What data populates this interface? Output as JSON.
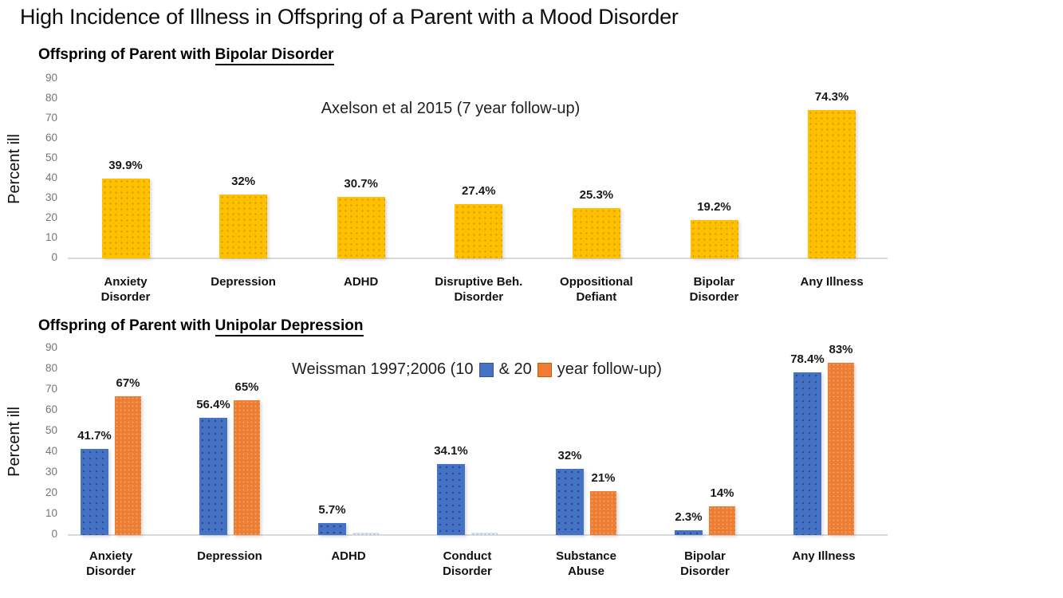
{
  "page": {
    "title": "High Incidence of Illness in Offspring of a Parent with a Mood Disorder"
  },
  "colors": {
    "gold": "#FFC000",
    "blue": "#4472C4",
    "orange": "#ED7D31",
    "sliver": "#DDE3EE",
    "axis_line": "#D9D9D9",
    "tick_text": "#757575"
  },
  "chart_data": [
    {
      "type": "bar",
      "title": "Offspring of Parent with Bipolar Disorder",
      "title_prefix": "Offspring of Parent with ",
      "title_underline": "Bipolar Disorder",
      "annotation": "Axelson et al 2015 (7 year follow-up)",
      "ylabel": "Percent ill",
      "ylim": [
        0,
        90
      ],
      "yticks": [
        0,
        10,
        20,
        30,
        40,
        50,
        60,
        70,
        80,
        90
      ],
      "grid": false,
      "legend_position": "none",
      "categories": [
        "Anxiety\nDisorder",
        "Depression",
        "ADHD",
        "Disruptive Beh.\nDisorder",
        "Oppositional\nDefiant",
        "Bipolar\nDisorder",
        "Any Illness"
      ],
      "series": [
        {
          "name": "7 year follow-up",
          "color": "#FFC000",
          "values": [
            39.9,
            32,
            30.7,
            27.4,
            25.3,
            19.2,
            74.3
          ],
          "labels": [
            "39.9%",
            "32%",
            "30.7%",
            "27.4%",
            "25.3%",
            "19.2%",
            "74.3%"
          ]
        }
      ]
    },
    {
      "type": "bar",
      "title": "Offspring of Parent with Unipolar Depression",
      "title_prefix": "Offspring of Parent with ",
      "title_underline": "Unipolar Depression",
      "annotation_prefix": "Weissman 1997;2006 (10",
      "annotation_mid": "& 20",
      "annotation_suffix": "year follow-up)",
      "ylabel": "Percent ill",
      "ylim": [
        0,
        90
      ],
      "yticks": [
        0,
        10,
        20,
        30,
        40,
        50,
        60,
        70,
        80,
        90
      ],
      "grid": false,
      "legend_position": "inline-annotation",
      "categories": [
        "Anxiety\nDisorder",
        "Depression",
        "ADHD",
        "Conduct\nDisorder",
        "Substance\nAbuse",
        "Bipolar\nDisorder",
        "Any Illness"
      ],
      "series": [
        {
          "name": "10 year follow-up",
          "color": "#4472C4",
          "values": [
            41.7,
            56.4,
            5.7,
            34.1,
            32,
            2.3,
            78.4
          ],
          "labels": [
            "41.7%",
            "56.4%",
            "5.7%",
            "34.1%",
            "32%",
            "2.3%",
            "78.4%"
          ]
        },
        {
          "name": "20 year follow-up",
          "color": "#ED7D31",
          "values": [
            67,
            65,
            1,
            1,
            21,
            14,
            83
          ],
          "labels": [
            "67%",
            "65%",
            "",
            "",
            "21%",
            "14%",
            "83%"
          ],
          "point_colors": {
            "2": "#DDE3EE",
            "3": "#DDE3EE"
          }
        }
      ]
    }
  ]
}
